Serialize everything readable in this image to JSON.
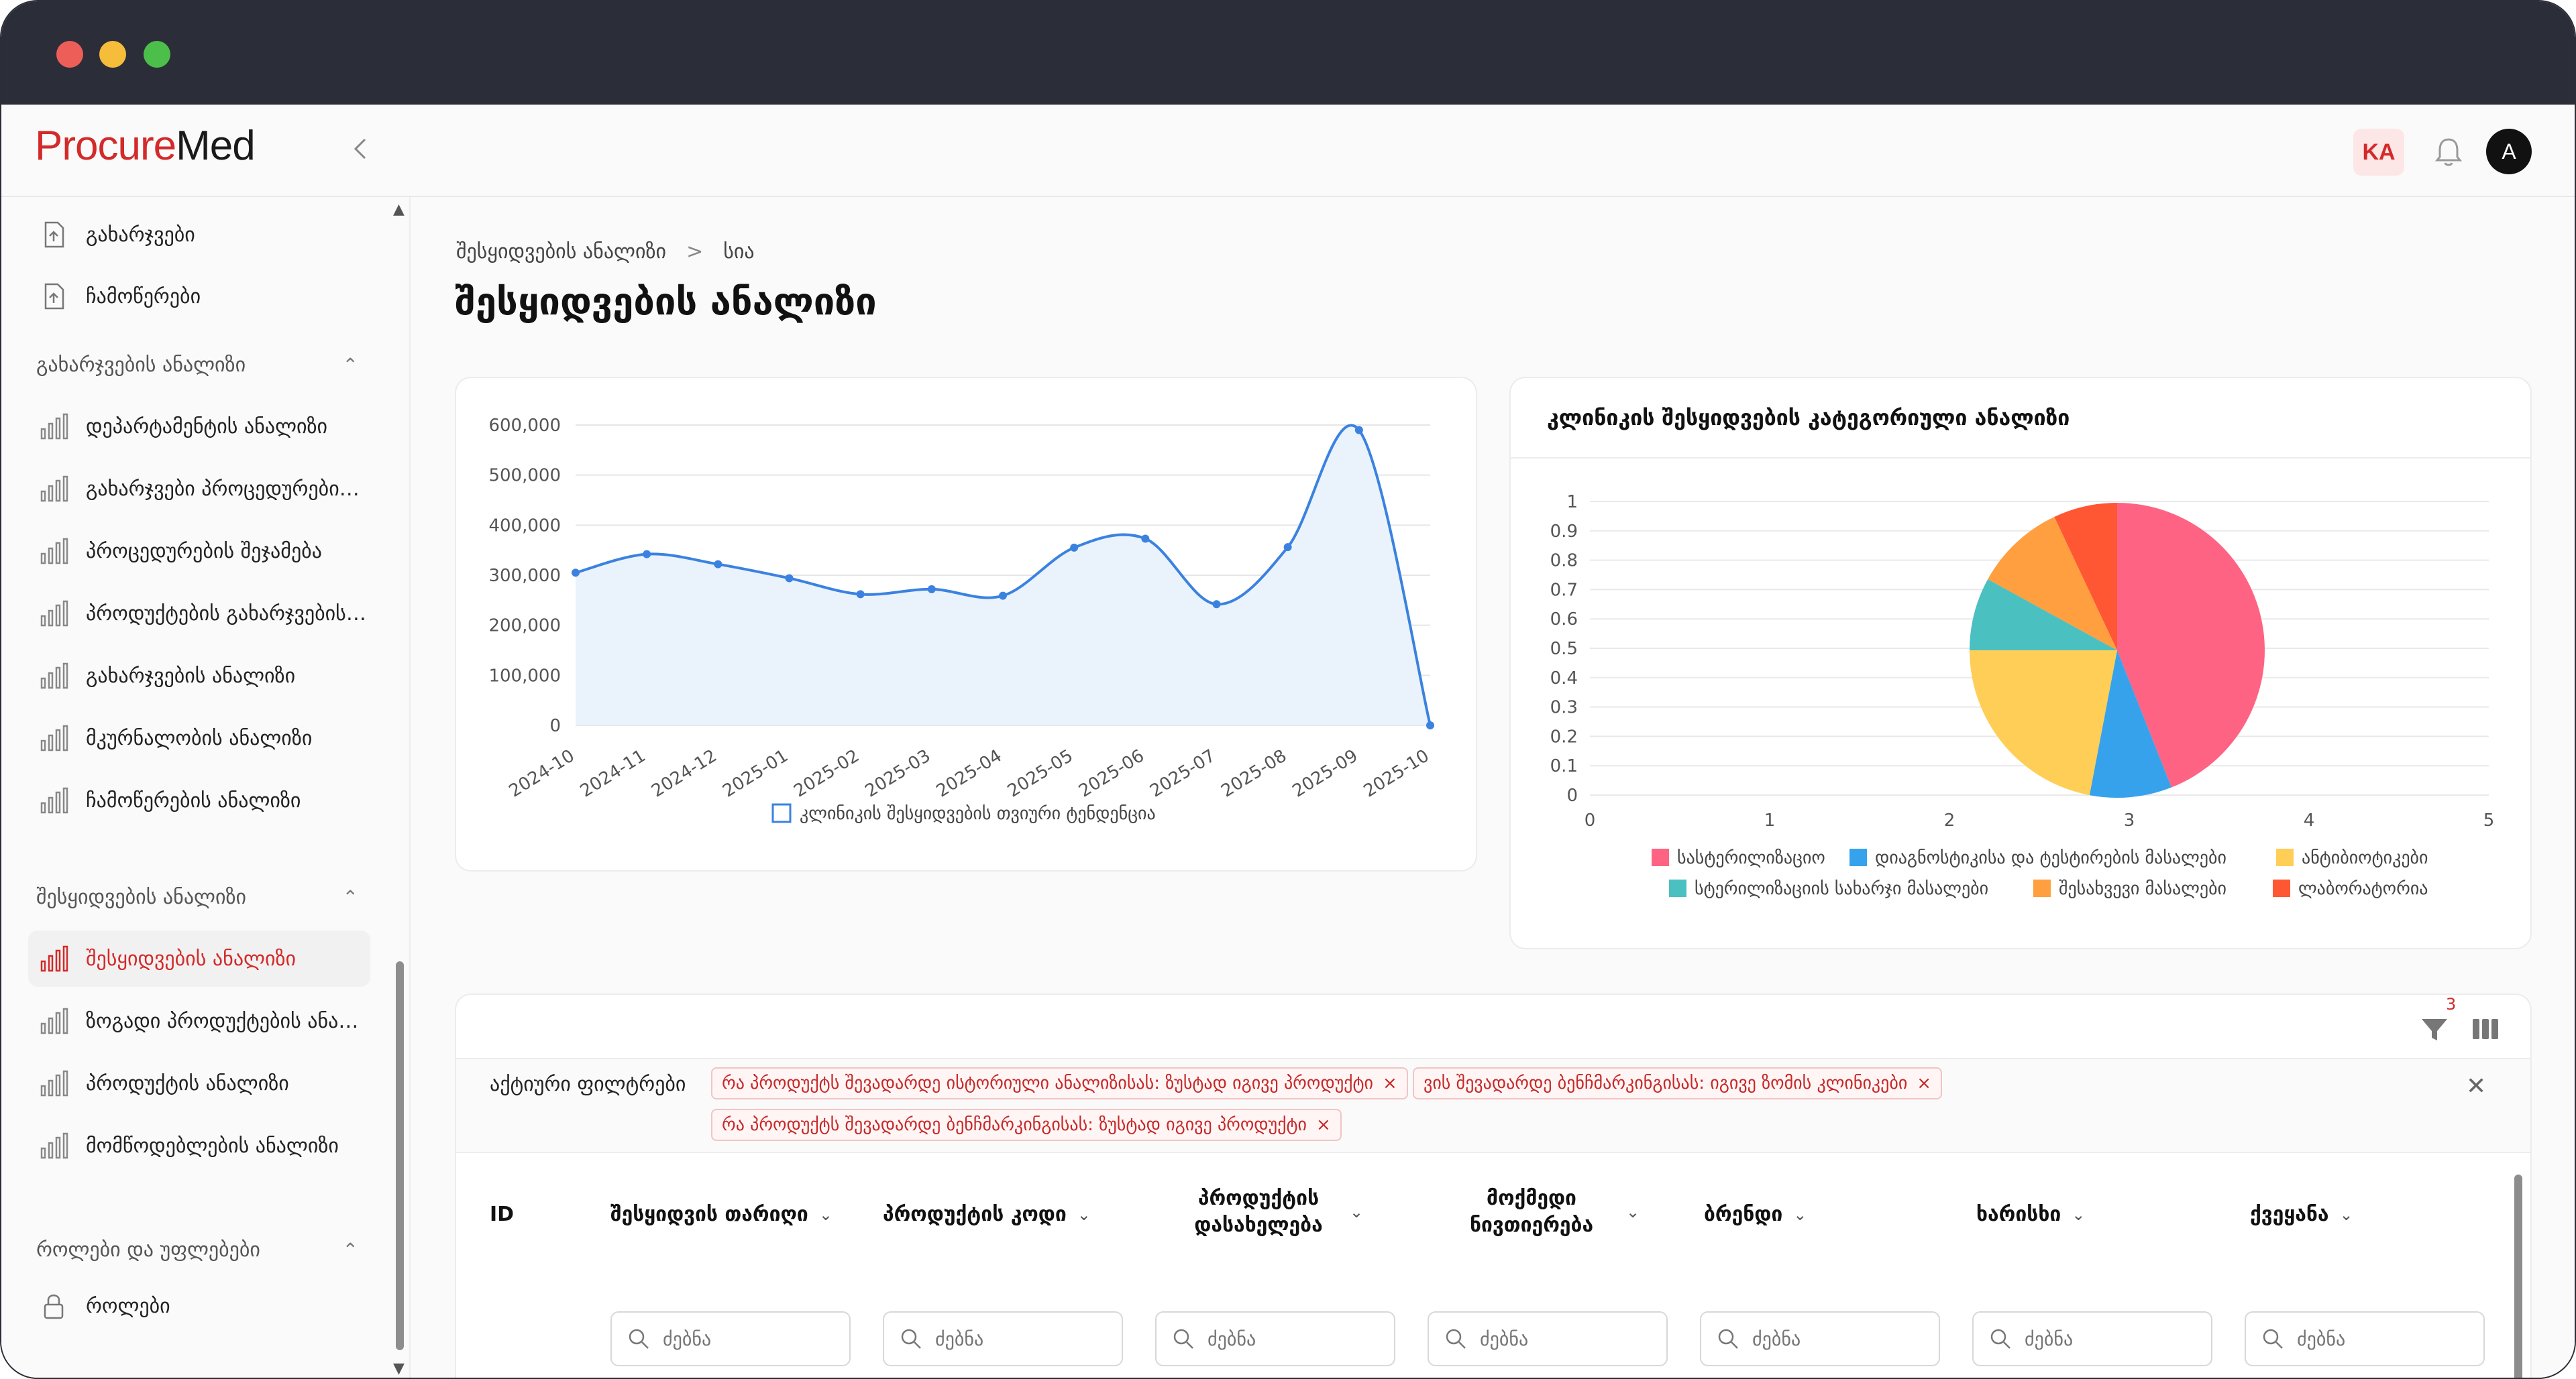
{
  "app": {
    "logo_part1": "Procure",
    "logo_part2": "Med",
    "lang": "KA",
    "avatar": "A"
  },
  "sidebar": {
    "items_top": [
      {
        "label": "გახარჯვები"
      },
      {
        "label": "ჩამოწერები"
      }
    ],
    "groups": [
      {
        "title": "გახარჯვების ანალიზი",
        "items": [
          {
            "label": "დეპარტამენტის ანალიზი"
          },
          {
            "label": "გახარჯვები პროცედურების მიხედვით"
          },
          {
            "label": "პროცედურების შეჯამება"
          },
          {
            "label": "პროდუქტების გახარჯვების ანალიზი"
          },
          {
            "label": "გახარჯვების ანალიზი"
          },
          {
            "label": "მკურნალობის ანალიზი"
          },
          {
            "label": "ჩამოწერების ანალიზი"
          }
        ]
      },
      {
        "title": "შესყიდვების ანალიზი",
        "items": [
          {
            "label": "შესყიდვების ანალიზი",
            "active": true
          },
          {
            "label": "ზოგადი პროდუქტების ანალიზი"
          },
          {
            "label": "პროდუქტის ანალიზი"
          },
          {
            "label": "მომწოდებლების ანალიზი"
          }
        ]
      },
      {
        "title": "როლები და უფლებები",
        "items": [
          {
            "label": "როლები"
          }
        ]
      }
    ]
  },
  "breadcrumb": {
    "parent": "შესყიდვების ანალიზი",
    "sep": ">",
    "current": "სია"
  },
  "page_title": "შესყიდვების ანალიზი",
  "chart_data": [
    {
      "type": "area",
      "title": "",
      "x": [
        "2024-10",
        "2024-11",
        "2024-12",
        "2025-01",
        "2025-02",
        "2025-03",
        "2025-04",
        "2025-05",
        "2025-06",
        "2025-07",
        "2025-08",
        "2025-09",
        "2025-10"
      ],
      "series": [
        {
          "name": "კლინიკის შესყიდვების თვიური ტენდენცია",
          "values": [
            305000,
            342000,
            322000,
            294000,
            262000,
            272000,
            259000,
            355000,
            373000,
            242000,
            356000,
            590000,
            0
          ]
        }
      ],
      "ylim": [
        0,
        600000
      ],
      "yticks": [
        "0",
        "100,000",
        "200,000",
        "300,000",
        "400,000",
        "500,000",
        "600,000"
      ],
      "color": "#3b82e0",
      "fill": "#eaf3fc",
      "grid": true,
      "legend": "bottom"
    },
    {
      "type": "pie",
      "title": "კლინიკის შესყიდვების კატეგორიული ანალიზი",
      "slices": [
        {
          "name": "სასტერილიზაციო",
          "value": 0.44,
          "color": "#ff6384"
        },
        {
          "name": "დიაგნოსტიკისა და ტესტირების მასალები",
          "value": 0.09,
          "color": "#36a2eb"
        },
        {
          "name": "ანტიბიოტიკები",
          "value": 0.22,
          "color": "#ffce56"
        },
        {
          "name": "სტერილიზაციის სახარჯი მასალები",
          "value": 0.08,
          "color": "#4bc0c0"
        },
        {
          "name": "შესახვევი მასალები",
          "value": 0.1,
          "color": "#ff9f40"
        },
        {
          "name": "ლაბორატორია",
          "value": 0.07,
          "color": "#ff5733"
        }
      ],
      "xticks": [
        "0",
        "1",
        "2",
        "3",
        "4",
        "5"
      ],
      "yticks": [
        "0",
        "0.1",
        "0.2",
        "0.3",
        "0.4",
        "0.5",
        "0.6",
        "0.7",
        "0.8",
        "0.9",
        "1"
      ],
      "legend": "bottom"
    }
  ],
  "table": {
    "filters_label": "აქტიური ფილტრები",
    "filter_count": "3",
    "chips": [
      "რა პროდუქტს შევადარდე ისტორიული ანალიზისას: ზუსტად იგივე პროდუქტი",
      "ვის შევადარდე ბენჩმარკინგისას: იგივე ზომის კლინიკები",
      "რა პროდუქტს შევადარდე ბენჩმარკინგისას: ზუსტად იგივე პროდუქტი"
    ],
    "columns": [
      {
        "label": "ID"
      },
      {
        "label": "შესყიდვის თარიღი"
      },
      {
        "label": "პროდუქტის კოდი"
      },
      {
        "label": "პროდუქტის დასახელება"
      },
      {
        "label": "მოქმედი ნივთიერება"
      },
      {
        "label": "ბრენდი"
      },
      {
        "label": "ხარისხი"
      },
      {
        "label": "ქვეყანა"
      }
    ],
    "search_placeholder": "ძებნა"
  }
}
